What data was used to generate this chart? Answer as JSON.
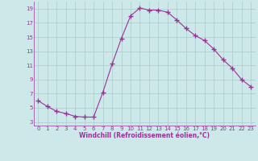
{
  "x": [
    0,
    1,
    2,
    3,
    4,
    5,
    6,
    7,
    8,
    9,
    10,
    11,
    12,
    13,
    14,
    15,
    16,
    17,
    18,
    19,
    20,
    21,
    22,
    23
  ],
  "y": [
    6.0,
    5.2,
    4.5,
    4.2,
    3.8,
    3.7,
    3.7,
    7.2,
    11.2,
    14.8,
    18.0,
    19.1,
    18.8,
    18.8,
    18.5,
    17.4,
    16.2,
    15.2,
    14.5,
    13.3,
    11.8,
    10.6,
    9.0,
    8.0
  ],
  "line_color": "#993399",
  "marker": "+",
  "marker_size": 4,
  "marker_lw": 1.0,
  "bg_color": "#cce8e8",
  "grid_color": "#aacccc",
  "tick_color": "#993399",
  "label_color": "#993399",
  "xlabel": "Windchill (Refroidissement éolien,°C)",
  "xlim": [
    -0.5,
    23.5
  ],
  "ylim": [
    2.5,
    20.0
  ],
  "yticks": [
    3,
    5,
    7,
    9,
    11,
    13,
    15,
    17,
    19
  ],
  "xticks": [
    0,
    1,
    2,
    3,
    4,
    5,
    6,
    7,
    8,
    9,
    10,
    11,
    12,
    13,
    14,
    15,
    16,
    17,
    18,
    19,
    20,
    21,
    22,
    23
  ],
  "tick_fontsize": 5,
  "xlabel_fontsize": 5.5
}
